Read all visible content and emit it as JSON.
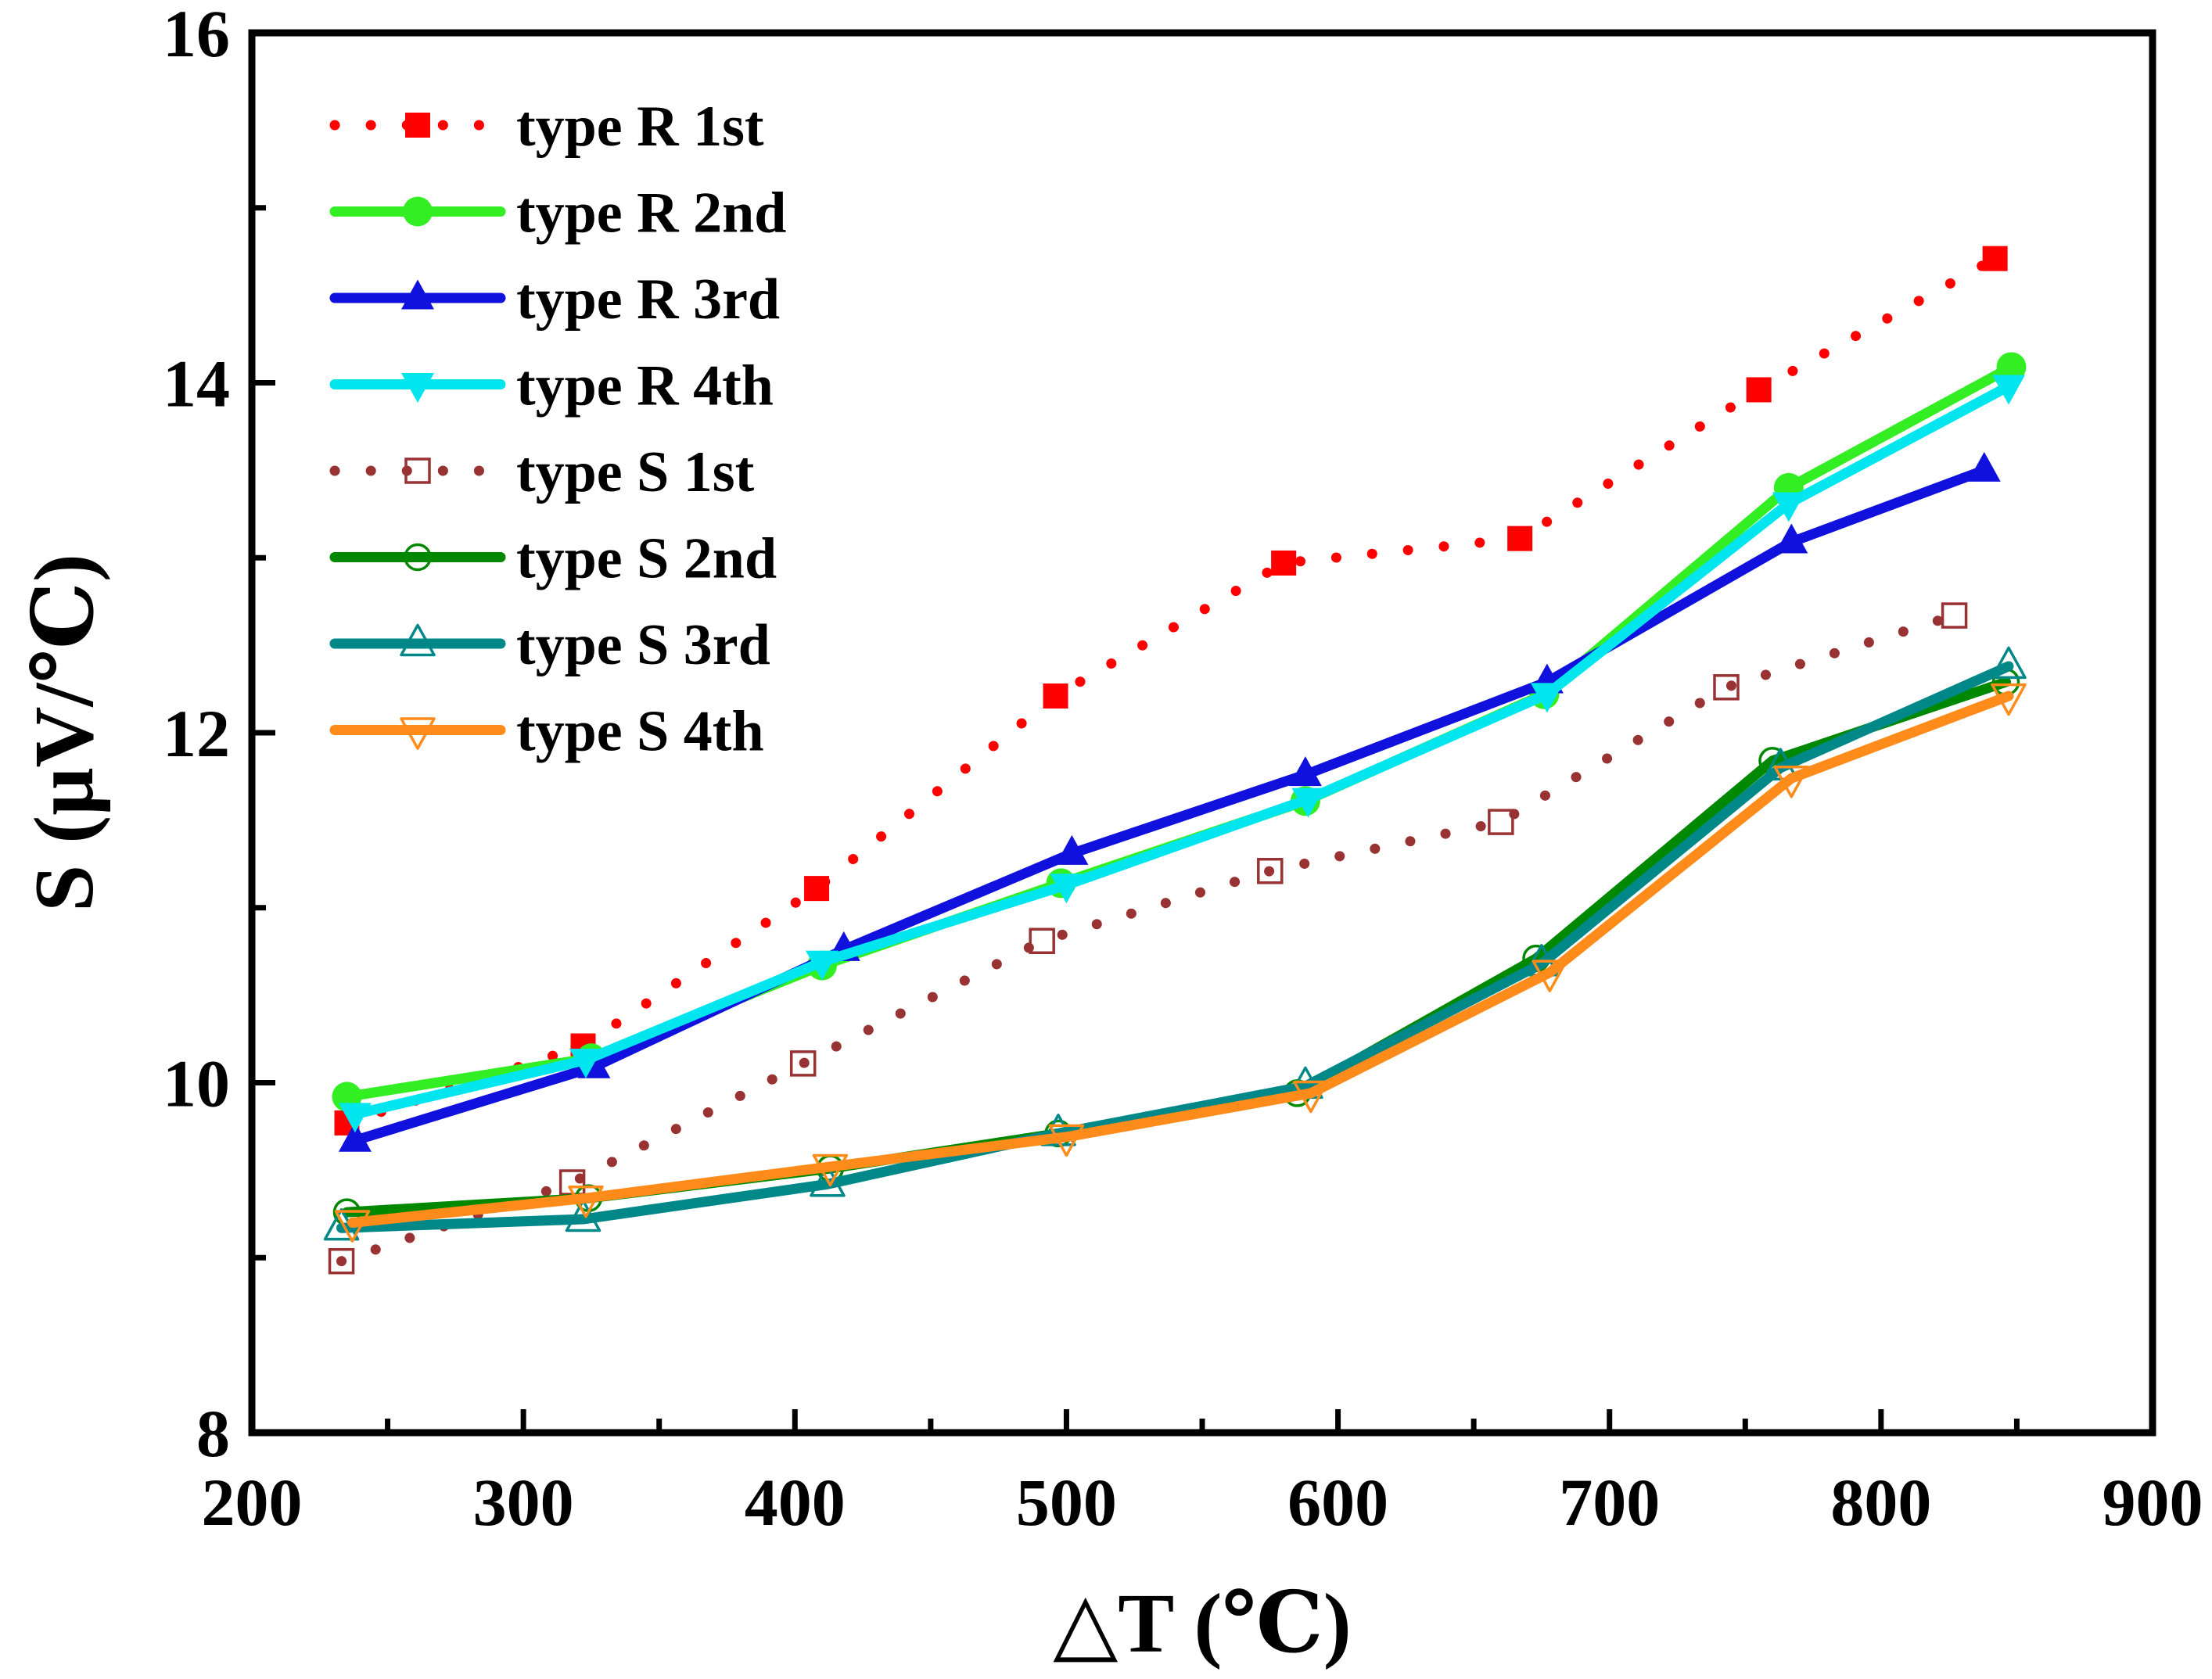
{
  "chart_data": {
    "type": "line",
    "title": "",
    "xlabel": "△T (℃)",
    "ylabel": "S (μV/℃)",
    "xlim": [
      200,
      900
    ],
    "ylim": [
      8,
      16
    ],
    "xticks": [
      200,
      300,
      400,
      500,
      600,
      700,
      800,
      900
    ],
    "yticks": [
      8,
      10,
      12,
      14,
      16
    ],
    "grid": false,
    "legend_position": "top-left",
    "series": [
      {
        "name": "type R 1st",
        "color": "#ff0000",
        "line": "dotted",
        "marker": "square-filled",
        "x": [
          235,
          322,
          408,
          496,
          580,
          667,
          755,
          842
        ],
        "y": [
          9.77,
          10.21,
          11.11,
          12.21,
          12.97,
          13.11,
          13.96,
          14.71
        ]
      },
      {
        "name": "type R 2nd",
        "color": "#33ee22",
        "line": "solid",
        "marker": "circle-filled",
        "x": [
          235,
          325,
          410,
          498,
          588,
          676,
          766,
          848
        ],
        "y": [
          9.92,
          10.14,
          10.67,
          11.14,
          11.61,
          12.22,
          13.4,
          14.09
        ]
      },
      {
        "name": "type R 3rd",
        "color": "#1111dd",
        "line": "solid",
        "marker": "triangle-up-filled",
        "x": [
          238,
          326,
          418,
          502,
          588,
          677,
          767,
          838
        ],
        "y": [
          9.67,
          10.09,
          10.76,
          11.31,
          11.76,
          12.29,
          13.09,
          13.5
        ]
      },
      {
        "name": "type R 4th",
        "color": "#00e5ee",
        "line": "solid",
        "marker": "triangle-down-filled",
        "x": [
          238,
          323,
          410,
          500,
          589,
          677,
          766,
          847
        ],
        "y": [
          9.82,
          10.13,
          10.69,
          11.13,
          11.62,
          12.22,
          13.31,
          13.98
        ]
      },
      {
        "name": "type S 1st",
        "color": "#993333",
        "line": "dotted",
        "marker": "square-open",
        "x": [
          233,
          318,
          403,
          491,
          575,
          660,
          743,
          827
        ],
        "y": [
          8.98,
          9.43,
          10.11,
          10.81,
          11.21,
          11.49,
          12.26,
          12.67
        ]
      },
      {
        "name": "type S 2nd",
        "color": "#008800",
        "line": "solid",
        "marker": "circle-open",
        "x": [
          235,
          324,
          413,
          497,
          585,
          673,
          760,
          846
        ],
        "y": [
          9.26,
          9.34,
          9.51,
          9.71,
          9.94,
          10.71,
          11.84,
          12.29
        ]
      },
      {
        "name": "type S 3rd",
        "color": "#008888",
        "line": "solid",
        "marker": "triangle-up-open",
        "x": [
          233,
          322,
          412,
          497,
          588,
          675,
          763,
          847
        ],
        "y": [
          9.17,
          9.22,
          9.42,
          9.71,
          9.98,
          10.68,
          11.8,
          12.38
        ]
      },
      {
        "name": "type S 4th",
        "color": "#ff8c1a",
        "line": "solid",
        "marker": "triangle-down-open",
        "x": [
          237,
          323,
          413,
          500,
          590,
          678,
          767,
          847
        ],
        "y": [
          9.2,
          9.34,
          9.52,
          9.69,
          9.94,
          10.63,
          11.74,
          12.21
        ]
      }
    ]
  }
}
